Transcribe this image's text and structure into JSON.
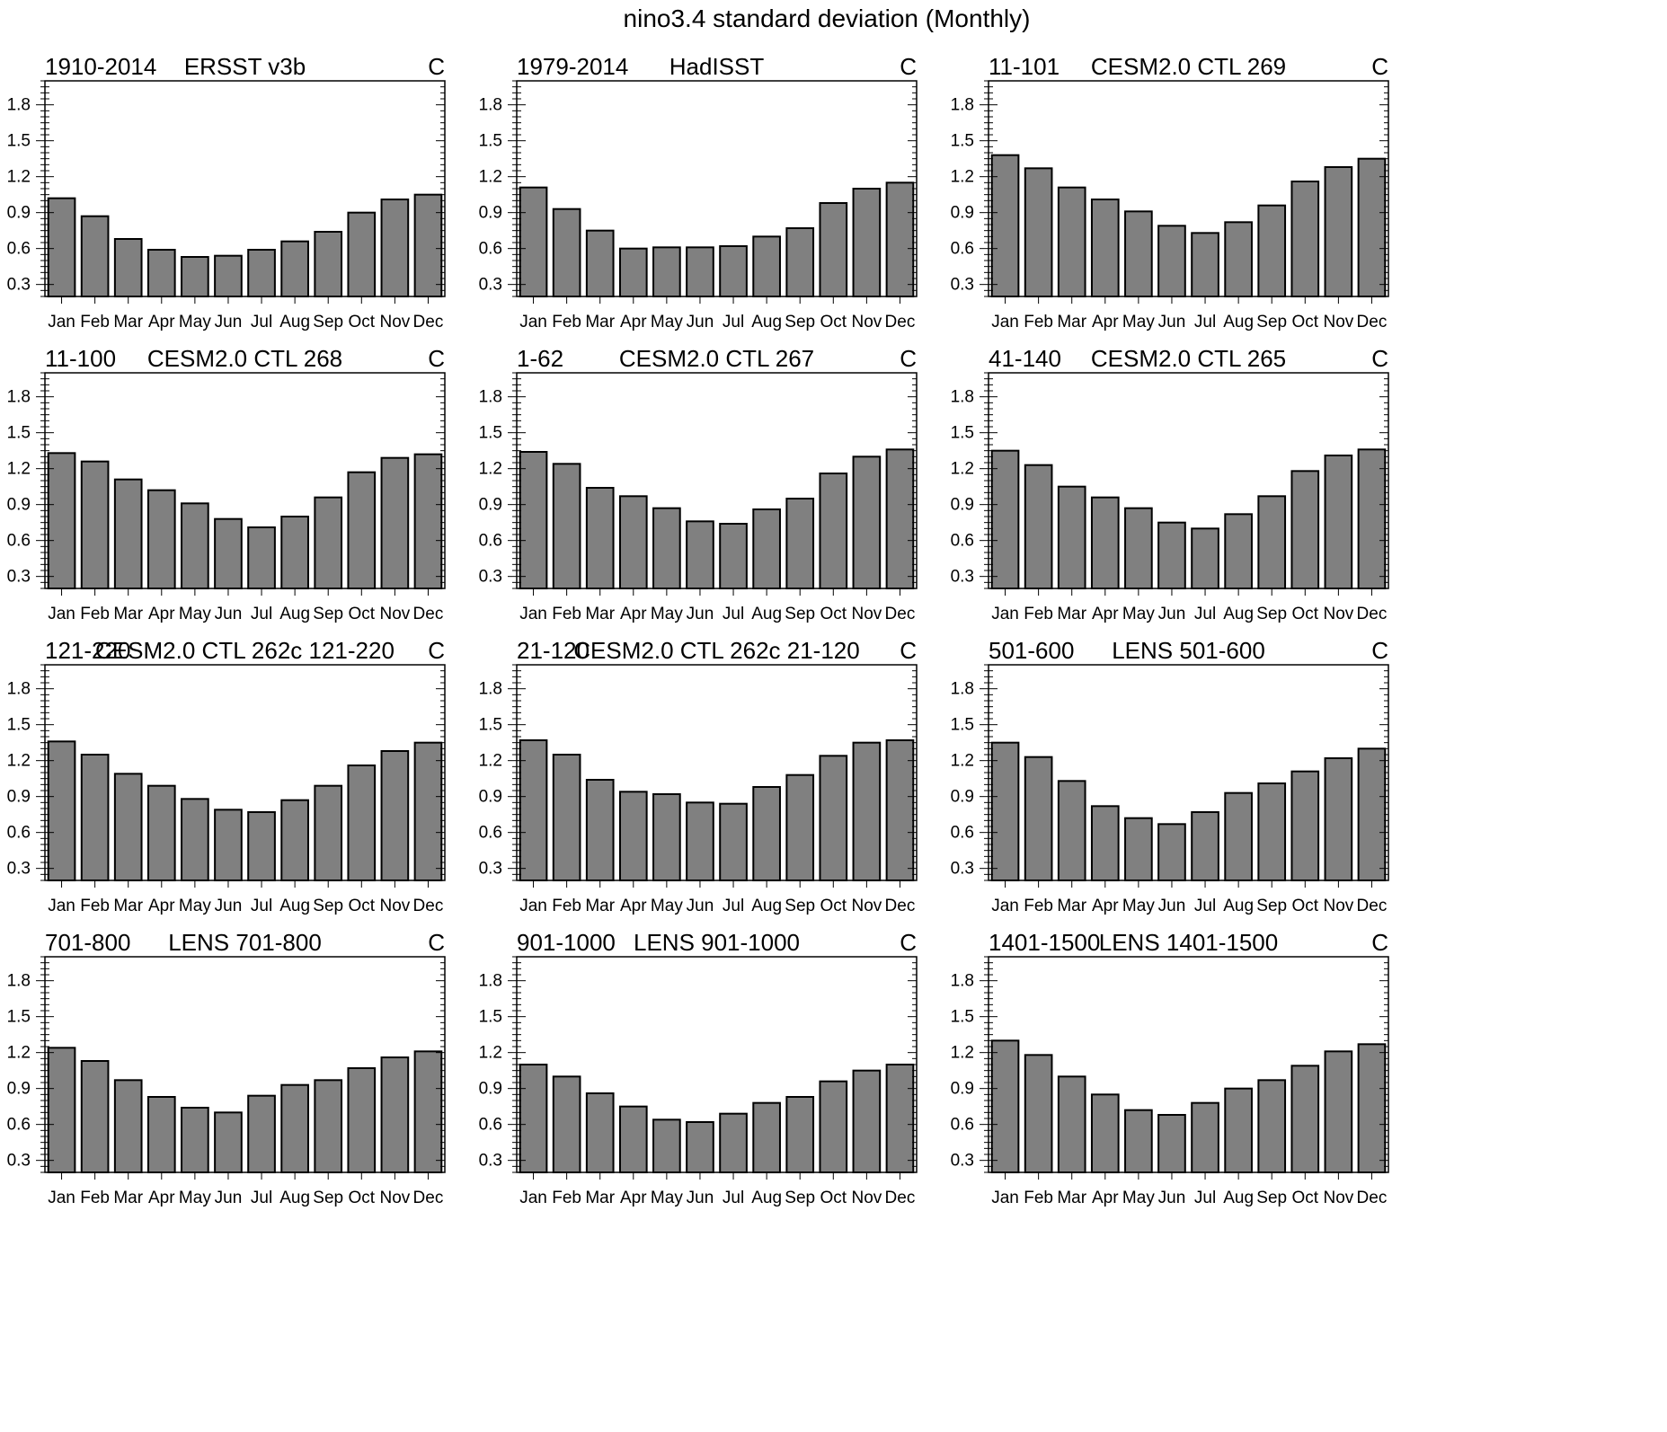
{
  "title": "nino3.4 standard deviation (Monthly)",
  "chart_data": [
    {
      "type": "bar",
      "left_label": "1910-2014",
      "title": "ERSST v3b",
      "units": "C",
      "categories": [
        "Jan",
        "Feb",
        "Mar",
        "Apr",
        "May",
        "Jun",
        "Jul",
        "Aug",
        "Sep",
        "Oct",
        "Nov",
        "Dec"
      ],
      "values": [
        1.02,
        0.87,
        0.68,
        0.59,
        0.53,
        0.54,
        0.59,
        0.66,
        0.74,
        0.9,
        1.01,
        1.05
      ],
      "ylim": [
        0.2,
        2.0
      ],
      "yticks": [
        "0.3",
        "0.6",
        "0.9",
        "1.2",
        "1.5",
        "1.8"
      ]
    },
    {
      "type": "bar",
      "left_label": "1979-2014",
      "title": "HadISST",
      "units": "C",
      "categories": [
        "Jan",
        "Feb",
        "Mar",
        "Apr",
        "May",
        "Jun",
        "Jul",
        "Aug",
        "Sep",
        "Oct",
        "Nov",
        "Dec"
      ],
      "values": [
        1.11,
        0.93,
        0.75,
        0.6,
        0.61,
        0.61,
        0.62,
        0.7,
        0.77,
        0.98,
        1.1,
        1.15
      ],
      "ylim": [
        0.2,
        2.0
      ],
      "yticks": [
        "0.3",
        "0.6",
        "0.9",
        "1.2",
        "1.5",
        "1.8"
      ]
    },
    {
      "type": "bar",
      "left_label": "11-101",
      "title": "CESM2.0 CTL 269",
      "units": "C",
      "categories": [
        "Jan",
        "Feb",
        "Mar",
        "Apr",
        "May",
        "Jun",
        "Jul",
        "Aug",
        "Sep",
        "Oct",
        "Nov",
        "Dec"
      ],
      "values": [
        1.38,
        1.27,
        1.11,
        1.01,
        0.91,
        0.79,
        0.73,
        0.82,
        0.96,
        1.16,
        1.28,
        1.35
      ],
      "ylim": [
        0.2,
        2.0
      ],
      "yticks": [
        "0.3",
        "0.6",
        "0.9",
        "1.2",
        "1.5",
        "1.8"
      ]
    },
    {
      "type": "bar",
      "left_label": "11-100",
      "title": "CESM2.0 CTL 268",
      "units": "C",
      "categories": [
        "Jan",
        "Feb",
        "Mar",
        "Apr",
        "May",
        "Jun",
        "Jul",
        "Aug",
        "Sep",
        "Oct",
        "Nov",
        "Dec"
      ],
      "values": [
        1.33,
        1.26,
        1.11,
        1.02,
        0.91,
        0.78,
        0.71,
        0.8,
        0.96,
        1.17,
        1.29,
        1.32
      ],
      "ylim": [
        0.2,
        2.0
      ],
      "yticks": [
        "0.3",
        "0.6",
        "0.9",
        "1.2",
        "1.5",
        "1.8"
      ]
    },
    {
      "type": "bar",
      "left_label": "1-62",
      "title": "CESM2.0 CTL 267",
      "units": "C",
      "categories": [
        "Jan",
        "Feb",
        "Mar",
        "Apr",
        "May",
        "Jun",
        "Jul",
        "Aug",
        "Sep",
        "Oct",
        "Nov",
        "Dec"
      ],
      "values": [
        1.34,
        1.24,
        1.04,
        0.97,
        0.87,
        0.76,
        0.74,
        0.86,
        0.95,
        1.16,
        1.3,
        1.36
      ],
      "ylim": [
        0.2,
        2.0
      ],
      "yticks": [
        "0.3",
        "0.6",
        "0.9",
        "1.2",
        "1.5",
        "1.8"
      ]
    },
    {
      "type": "bar",
      "left_label": "41-140",
      "title": "CESM2.0 CTL 265",
      "units": "C",
      "categories": [
        "Jan",
        "Feb",
        "Mar",
        "Apr",
        "May",
        "Jun",
        "Jul",
        "Aug",
        "Sep",
        "Oct",
        "Nov",
        "Dec"
      ],
      "values": [
        1.35,
        1.23,
        1.05,
        0.96,
        0.87,
        0.75,
        0.7,
        0.82,
        0.97,
        1.18,
        1.31,
        1.36
      ],
      "ylim": [
        0.2,
        2.0
      ],
      "yticks": [
        "0.3",
        "0.6",
        "0.9",
        "1.2",
        "1.5",
        "1.8"
      ]
    },
    {
      "type": "bar",
      "left_label": "121-220",
      "title": "CESM2.0 CTL 262c 121-220",
      "units": "C",
      "categories": [
        "Jan",
        "Feb",
        "Mar",
        "Apr",
        "May",
        "Jun",
        "Jul",
        "Aug",
        "Sep",
        "Oct",
        "Nov",
        "Dec"
      ],
      "values": [
        1.36,
        1.25,
        1.09,
        0.99,
        0.88,
        0.79,
        0.77,
        0.87,
        0.99,
        1.16,
        1.28,
        1.35
      ],
      "ylim": [
        0.2,
        2.0
      ],
      "yticks": [
        "0.3",
        "0.6",
        "0.9",
        "1.2",
        "1.5",
        "1.8"
      ]
    },
    {
      "type": "bar",
      "left_label": "21-120",
      "title": "CESM2.0 CTL 262c 21-120",
      "units": "C",
      "categories": [
        "Jan",
        "Feb",
        "Mar",
        "Apr",
        "May",
        "Jun",
        "Jul",
        "Aug",
        "Sep",
        "Oct",
        "Nov",
        "Dec"
      ],
      "values": [
        1.37,
        1.25,
        1.04,
        0.94,
        0.92,
        0.85,
        0.84,
        0.98,
        1.08,
        1.24,
        1.35,
        1.37
      ],
      "ylim": [
        0.2,
        2.0
      ],
      "yticks": [
        "0.3",
        "0.6",
        "0.9",
        "1.2",
        "1.5",
        "1.8"
      ]
    },
    {
      "type": "bar",
      "left_label": "501-600",
      "title": "LENS 501-600",
      "units": "C",
      "categories": [
        "Jan",
        "Feb",
        "Mar",
        "Apr",
        "May",
        "Jun",
        "Jul",
        "Aug",
        "Sep",
        "Oct",
        "Nov",
        "Dec"
      ],
      "values": [
        1.35,
        1.23,
        1.03,
        0.82,
        0.72,
        0.67,
        0.77,
        0.93,
        1.01,
        1.11,
        1.22,
        1.3
      ],
      "ylim": [
        0.2,
        2.0
      ],
      "yticks": [
        "0.3",
        "0.6",
        "0.9",
        "1.2",
        "1.5",
        "1.8"
      ]
    },
    {
      "type": "bar",
      "left_label": "701-800",
      "title": "LENS 701-800",
      "units": "C",
      "categories": [
        "Jan",
        "Feb",
        "Mar",
        "Apr",
        "May",
        "Jun",
        "Jul",
        "Aug",
        "Sep",
        "Oct",
        "Nov",
        "Dec"
      ],
      "values": [
        1.24,
        1.13,
        0.97,
        0.83,
        0.74,
        0.7,
        0.84,
        0.93,
        0.97,
        1.07,
        1.16,
        1.21
      ],
      "ylim": [
        0.2,
        2.0
      ],
      "yticks": [
        "0.3",
        "0.6",
        "0.9",
        "1.2",
        "1.5",
        "1.8"
      ]
    },
    {
      "type": "bar",
      "left_label": "901-1000",
      "title": "LENS 901-1000",
      "units": "C",
      "categories": [
        "Jan",
        "Feb",
        "Mar",
        "Apr",
        "May",
        "Jun",
        "Jul",
        "Aug",
        "Sep",
        "Oct",
        "Nov",
        "Dec"
      ],
      "values": [
        1.1,
        1.0,
        0.86,
        0.75,
        0.64,
        0.62,
        0.69,
        0.78,
        0.83,
        0.96,
        1.05,
        1.1
      ],
      "ylim": [
        0.2,
        2.0
      ],
      "yticks": [
        "0.3",
        "0.6",
        "0.9",
        "1.2",
        "1.5",
        "1.8"
      ]
    },
    {
      "type": "bar",
      "left_label": "1401-1500",
      "title": "LENS 1401-1500",
      "units": "C",
      "categories": [
        "Jan",
        "Feb",
        "Mar",
        "Apr",
        "May",
        "Jun",
        "Jul",
        "Aug",
        "Sep",
        "Oct",
        "Nov",
        "Dec"
      ],
      "values": [
        1.3,
        1.18,
        1.0,
        0.85,
        0.72,
        0.68,
        0.78,
        0.9,
        0.97,
        1.09,
        1.21,
        1.27
      ],
      "ylim": [
        0.2,
        2.0
      ],
      "yticks": [
        "0.3",
        "0.6",
        "0.9",
        "1.2",
        "1.5",
        "1.8"
      ]
    }
  ],
  "style": {
    "bar_fill": "#808080",
    "bar_stroke": "#000000",
    "axis_color": "#000000",
    "background": "#ffffff"
  }
}
